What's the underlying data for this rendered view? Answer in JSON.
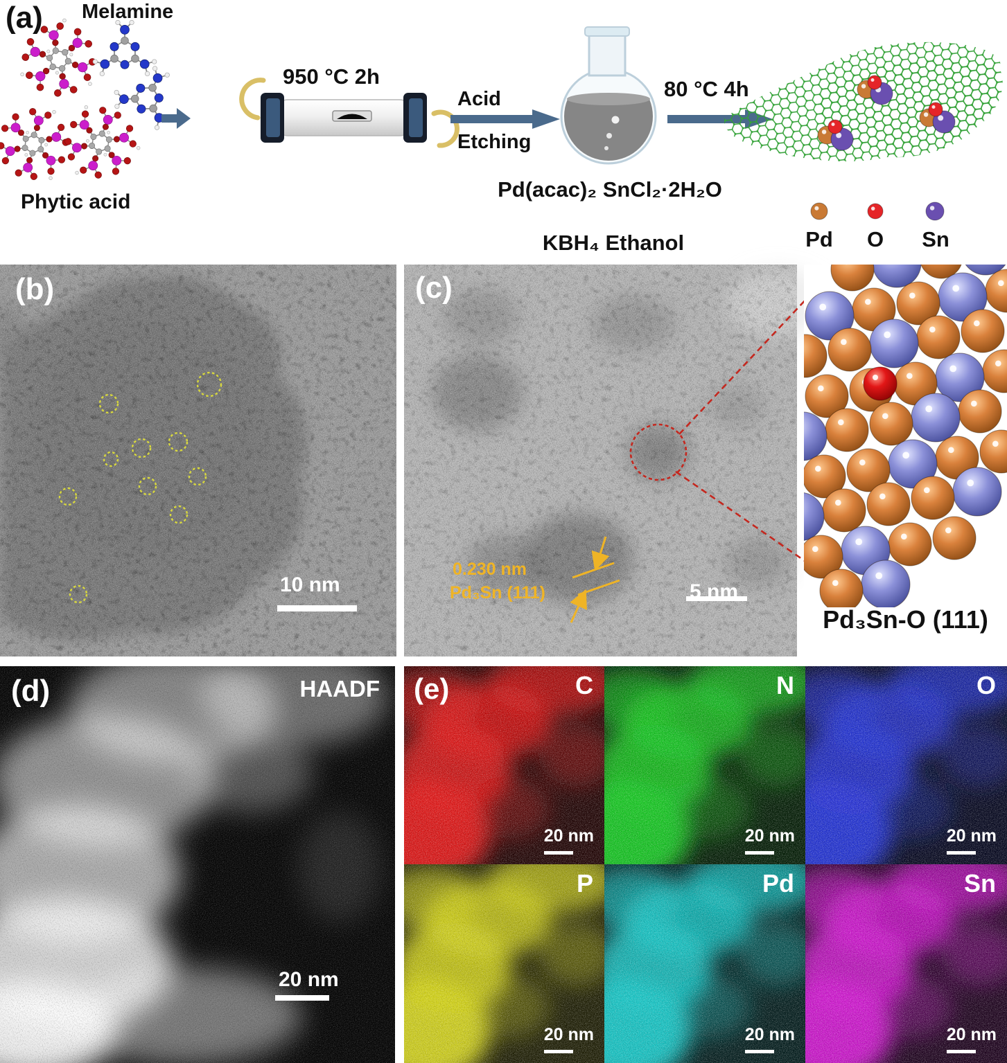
{
  "panel_a": {
    "label": "(a)",
    "molecule_labels": {
      "melamine": "Melamine",
      "phytic_acid": "Phytic acid"
    },
    "step1": {
      "condition": "950 °C 2h"
    },
    "step2": {
      "line1": "Acid",
      "line2": "Etching"
    },
    "flask_reagents": "Pd(acac)₂  SnCl₂·2H₂O",
    "step3": {
      "condition": "80 °C 4h"
    },
    "reduction_reagents": "KBH₄ Ethanol",
    "legend": {
      "items": [
        {
          "symbol": "Pd",
          "color": "#c97a35"
        },
        {
          "symbol": "O",
          "color": "#e52528"
        },
        {
          "symbol": "Sn",
          "color": "#6a4fb0"
        }
      ]
    }
  },
  "panel_b": {
    "label": "(b)",
    "scale_bar": "10 nm"
  },
  "panel_c": {
    "label": "(c)",
    "scale_bar": "5 nm",
    "lattice_annotation": {
      "spacing": "0.230 nm",
      "plane": "Pd₃Sn (111)"
    }
  },
  "crystal_model": {
    "caption": "Pd₃Sn-O (111)",
    "atom_colors": {
      "pd": "#d9813c",
      "sn": "#8b90d8",
      "o": "#e21717"
    }
  },
  "panel_d": {
    "label": "(d)",
    "technique": "HAADF",
    "scale_bar": "20 nm"
  },
  "panel_e": {
    "label": "(e)",
    "maps": [
      {
        "element": "C",
        "color": "#e01414",
        "scale_bar": "20 nm"
      },
      {
        "element": "N",
        "color": "#17c822",
        "scale_bar": "20 nm"
      },
      {
        "element": "O",
        "color": "#2434d6",
        "scale_bar": "20 nm"
      },
      {
        "element": "P",
        "color": "#d2d21a",
        "scale_bar": "20 nm"
      },
      {
        "element": "Pd",
        "color": "#14c6c6",
        "scale_bar": "20 nm"
      },
      {
        "element": "Sn",
        "color": "#cf14cf",
        "scale_bar": "20 nm"
      }
    ]
  }
}
